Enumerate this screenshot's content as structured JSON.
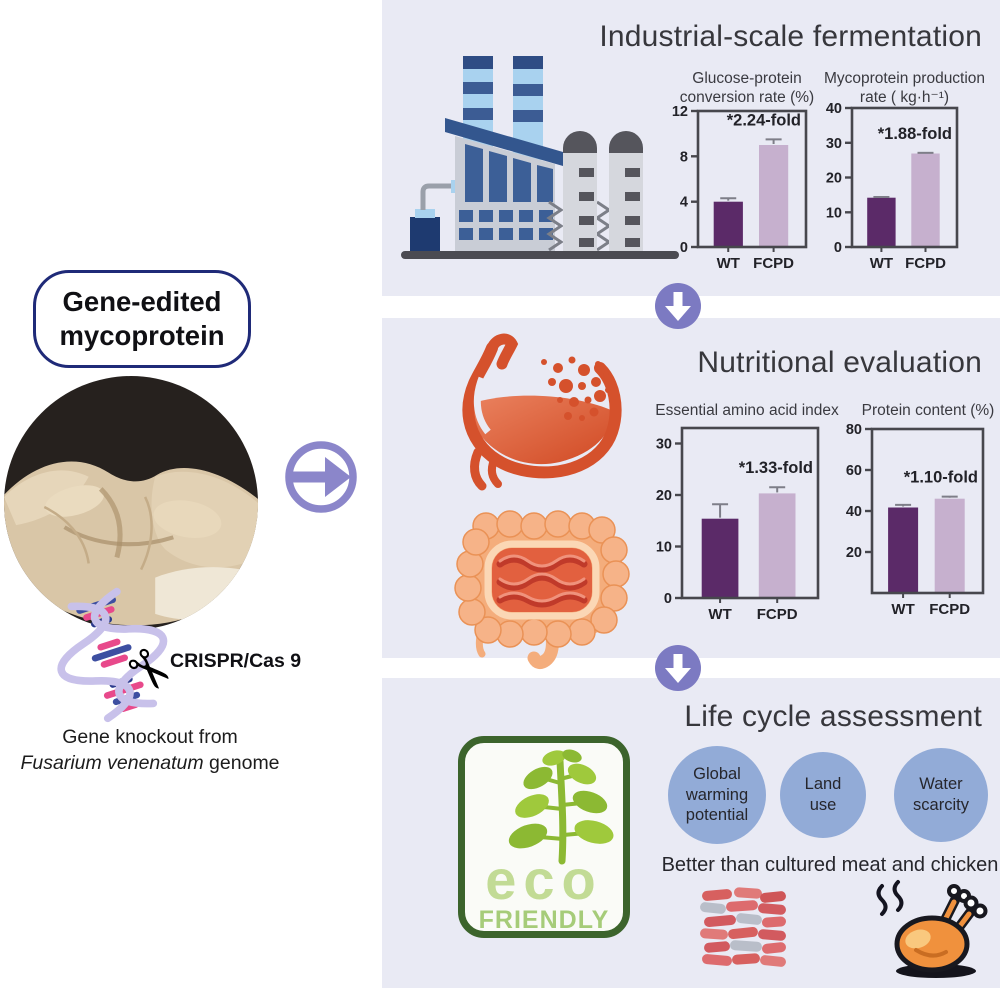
{
  "colors": {
    "panel_bg": "#e9eaf4",
    "accent_purple": "#8b86ca",
    "arrow_purple": "#7c7ac2",
    "bar_dark": "#5b2a68",
    "bar_light": "#c6b0ce",
    "axis": "#47474d",
    "circle_blue": "#92abd7",
    "eco_green_dark": "#3c642c",
    "eco_green": "#8cb933",
    "stomach_orange": "#d5512c"
  },
  "left": {
    "badge_line1": "Gene-edited",
    "badge_line2": "mycoprotein",
    "crispr_label": "CRISPR/Cas 9",
    "caption_line1": "Gene knockout from",
    "caption_italic": "Fusarium venenatum",
    "caption_tail": " genome"
  },
  "panels": {
    "fermentation": {
      "title": "Industrial-scale fermentation"
    },
    "nutrition": {
      "title": "Nutritional evaluation"
    },
    "lca": {
      "title": "Life cycle assessment",
      "factors": [
        "Global\nwarming\npotential",
        "Land\nuse",
        "Water\nscarcity"
      ],
      "better_text": "Better than cultured meat and chicken",
      "eco_word": "eco",
      "friendly_word": "FRIENDLY"
    }
  },
  "chart_data": [
    {
      "type": "bar",
      "title": "Glucose-protein\nconversion rate (%)",
      "categories": [
        "WT",
        "FCPD"
      ],
      "values": [
        4.0,
        9.0
      ],
      "errors": [
        0.3,
        0.5
      ],
      "annotation": "*2.24-fold",
      "yticks": [
        0,
        4,
        8,
        12
      ],
      "ylim": [
        0,
        12
      ],
      "ylabel": "",
      "grid": false
    },
    {
      "type": "bar",
      "title": "Mycoprotein production\nrate ( kg·h⁻¹)",
      "categories": [
        "WT",
        "FCPD"
      ],
      "values": [
        14.2,
        26.9
      ],
      "errors": [
        0.2,
        0.2
      ],
      "annotation": "*1.88-fold",
      "yticks": [
        0,
        10,
        20,
        30,
        40
      ],
      "ylim": [
        0,
        40
      ],
      "ylabel": "",
      "grid": false
    },
    {
      "type": "bar",
      "title": "Essential amino acid index",
      "categories": [
        "WT",
        "FCPD"
      ],
      "values": [
        15.4,
        20.3
      ],
      "errors": [
        2.8,
        1.2
      ],
      "annotation": "*1.33-fold",
      "yticks": [
        0,
        10,
        20,
        30
      ],
      "ylim": [
        0,
        33
      ],
      "ylabel": "",
      "grid": false
    },
    {
      "type": "bar",
      "title": "Protein content (%)",
      "categories": [
        "WT",
        "FCPD"
      ],
      "values": [
        41.7,
        46.0
      ],
      "errors": [
        1.3,
        1.0
      ],
      "annotation": "*1.10-fold",
      "yticks": [
        20,
        40,
        60,
        80
      ],
      "ylim": [
        0,
        80
      ],
      "ylabel": "",
      "grid": false
    }
  ]
}
